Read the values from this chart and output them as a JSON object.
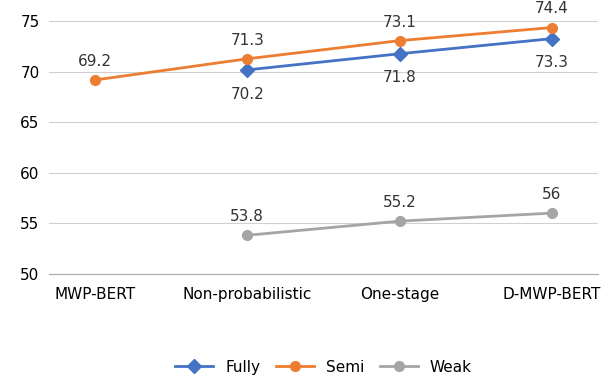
{
  "categories": [
    "MWP-BERT",
    "Non-probabilistic",
    "One-stage",
    "D-MWP-BERT"
  ],
  "series": [
    {
      "name": "Fully",
      "values": [
        null,
        70.2,
        71.8,
        73.3
      ],
      "color": "#4472C4",
      "marker": "D"
    },
    {
      "name": "Semi",
      "values": [
        69.2,
        71.3,
        73.1,
        74.4
      ],
      "color": "#ED7D31",
      "marker": "o"
    },
    {
      "name": "Weak",
      "values": [
        null,
        53.8,
        55.2,
        56.0
      ],
      "color": "#A5A5A5",
      "marker": "o"
    }
  ],
  "ylim": [
    50,
    76
  ],
  "yticks": [
    50,
    55,
    60,
    65,
    70,
    75
  ],
  "font_size": 11,
  "label_font_size": 11,
  "legend_font_size": 11,
  "background_color": "#ffffff",
  "grid_color": "#d0d0d0",
  "line_width": 2.0,
  "marker_size": 7,
  "annotation_offsets": {
    "Semi": [
      8,
      8,
      8,
      8
    ],
    "Fully": [
      -12,
      -12,
      -12,
      -12
    ],
    "Weak": [
      8,
      8,
      8,
      8
    ]
  }
}
